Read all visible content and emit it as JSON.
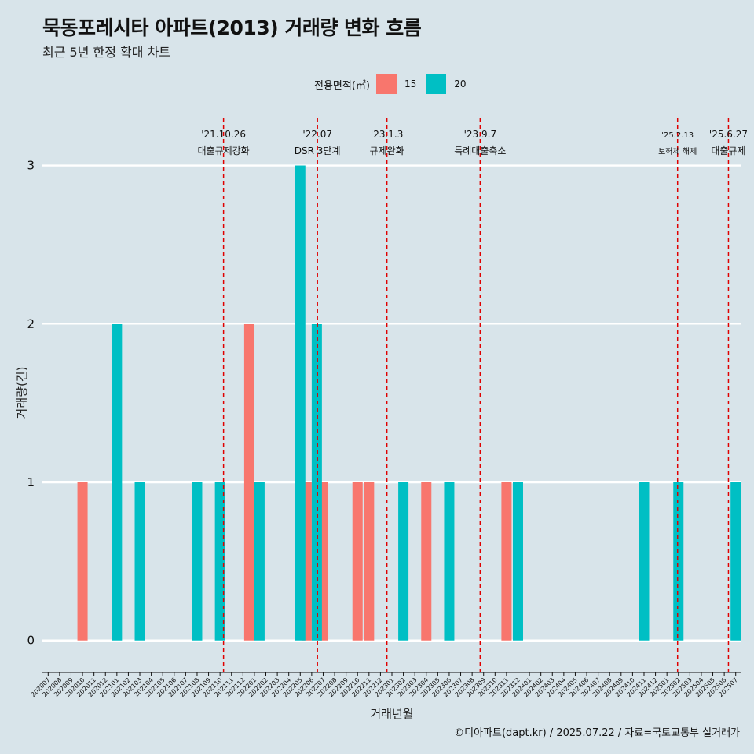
{
  "title": "묵동포레시타 아파트(2013) 거래량 변화 흐름",
  "subtitle": "최근 5년 한정 확대 차트",
  "caption": "©디아파트(dapt.kr) / 2025.07.22 / 자료=국토교통부 실거래가",
  "legend": {
    "title": "전용면적(㎡)",
    "items": [
      {
        "label": "15",
        "color": "#f8766d"
      },
      {
        "label": "20",
        "color": "#00bfc4"
      }
    ]
  },
  "chart_data": {
    "type": "bar",
    "xlabel": "거래년월",
    "ylabel": "거래량(건)",
    "ylim": [
      -0.15,
      3.3
    ],
    "yticks": [
      0,
      1,
      2,
      3
    ],
    "grid": true,
    "legend_position": "top",
    "categories": [
      "202007",
      "202008",
      "202009",
      "202010",
      "202011",
      "202012",
      "202101",
      "202102",
      "202103",
      "202104",
      "202105",
      "202106",
      "202107",
      "202108",
      "202109",
      "202110",
      "202111",
      "202112",
      "202201",
      "202202",
      "202203",
      "202204",
      "202205",
      "202206",
      "202207",
      "202208",
      "202209",
      "202210",
      "202211",
      "202212",
      "202301",
      "202302",
      "202303",
      "202304",
      "202305",
      "202306",
      "202307",
      "202308",
      "202309",
      "202310",
      "202311",
      "202312",
      "202401",
      "202402",
      "202403",
      "202404",
      "202405",
      "202406",
      "202407",
      "202408",
      "202409",
      "202410",
      "202411",
      "202412",
      "202501",
      "202502",
      "202503",
      "202504",
      "202505",
      "202506",
      "202507"
    ],
    "series": [
      {
        "name": "15",
        "color": "#f8766d",
        "values": [
          0,
          0,
          0,
          1,
          0,
          0,
          0,
          0,
          0,
          0,
          0,
          0,
          0,
          0,
          0,
          0,
          0,
          0,
          2,
          0,
          0,
          0,
          0,
          1,
          1,
          0,
          0,
          1,
          1,
          0,
          0,
          0,
          0,
          1,
          0,
          0,
          0,
          0,
          0,
          0,
          1,
          0,
          0,
          0,
          0,
          0,
          0,
          0,
          0,
          0,
          0,
          0,
          0,
          0,
          0,
          0,
          0,
          0,
          0,
          0,
          0
        ]
      },
      {
        "name": "20",
        "color": "#00bfc4",
        "values": [
          0,
          0,
          0,
          0,
          0,
          0,
          2,
          0,
          1,
          0,
          0,
          0,
          0,
          1,
          0,
          1,
          0,
          0,
          1,
          0,
          0,
          0,
          3,
          2,
          0,
          0,
          0,
          0,
          0,
          0,
          0,
          1,
          0,
          0,
          0,
          1,
          0,
          0,
          0,
          0,
          0,
          1,
          0,
          0,
          0,
          0,
          0,
          0,
          0,
          0,
          0,
          0,
          1,
          0,
          0,
          1,
          0,
          0,
          0,
          0,
          1
        ]
      }
    ],
    "events": [
      {
        "date": "2021-10-26",
        "label_top": "'21.10.26",
        "label_bottom": "대출규제강화"
      },
      {
        "date": "2022-07-01",
        "label_top": "'22.07",
        "label_bottom": "DSR 3단계"
      },
      {
        "date": "2023-01-03",
        "label_top": "'23.1.3",
        "label_bottom": "규제완화"
      },
      {
        "date": "2023-09-07",
        "label_top": "'23.9.7",
        "label_bottom": "특례대출축소"
      },
      {
        "date": "2025-02-13",
        "label_top": "'25.2.13",
        "label_bottom": "토허제 해제"
      },
      {
        "date": "2025-06-27",
        "label_top": "'25.6.27",
        "label_bottom": "대출규제"
      }
    ]
  }
}
